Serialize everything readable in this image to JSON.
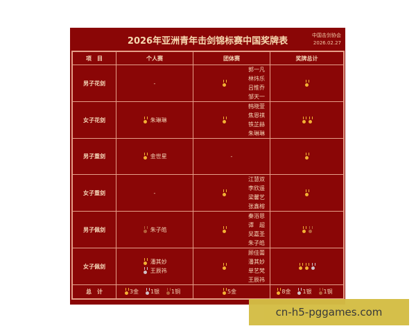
{
  "title": "2026年亚洲青年击剑锦标赛中国奖牌表",
  "org": "中国击剑协会",
  "date": "2026.02.27",
  "headers": [
    "项　目",
    "个人赛",
    "团体赛",
    "奖牌总计"
  ],
  "medal_colors": {
    "gold": "#f3b134",
    "silver": "#cfc2c8",
    "bronze": "#b5603a"
  },
  "rows": [
    {
      "event": "男子花剑",
      "individual": [],
      "individual_empty": "-",
      "team_medal": "gold",
      "team": [
        "郭一凡",
        "林炜乐",
        "吕惟乔",
        "邹天一"
      ],
      "total": [
        "gold"
      ]
    },
    {
      "event": "女子花剑",
      "individual": [
        {
          "medal": "gold",
          "name": "朱琳琳"
        }
      ],
      "team_medal": "gold",
      "team": [
        "韩晓萱",
        "焦恩祺",
        "铁芷赫",
        "朱琳琳"
      ],
      "total": [
        "gold",
        "gold"
      ]
    },
    {
      "event": "男子重剑",
      "individual": [
        {
          "medal": "gold",
          "name": "金世星"
        }
      ],
      "team_medal": null,
      "team_empty": "-",
      "team": [],
      "total": [
        "gold"
      ]
    },
    {
      "event": "女子重剑",
      "individual": [],
      "individual_empty": "-",
      "team_medal": "gold",
      "team": [
        "江慧双",
        "李欣遥",
        "梁馨艺",
        "张鑫榕"
      ],
      "total": [
        "gold"
      ]
    },
    {
      "event": "男子佩剑",
      "individual": [
        {
          "medal": "bronze",
          "name": "朱子皓"
        }
      ],
      "team_medal": "gold",
      "team": [
        "秦浴恩",
        "谭　超",
        "吴嘉圣",
        "朱子皓"
      ],
      "total": [
        "gold",
        "bronze"
      ]
    },
    {
      "event": "女子佩剑",
      "individual": [
        {
          "medal": "gold",
          "name": "潘其妙"
        },
        {
          "medal": "silver",
          "name": "王辰祎"
        }
      ],
      "team_medal": "gold",
      "team": [
        "顾佳薷",
        "潘其妙",
        "单艺梵",
        "王辰祎"
      ],
      "total": [
        "gold",
        "gold",
        "silver"
      ]
    }
  ],
  "totals": {
    "label": "总　计",
    "individual": [
      {
        "medal": "gold",
        "text": "3金"
      },
      {
        "medal": "silver",
        "text": "1银"
      },
      {
        "medal": "bronze",
        "text": "1铜"
      }
    ],
    "team": [
      {
        "medal": "gold",
        "text": "5金"
      }
    ],
    "overall": [
      {
        "medal": "gold",
        "text": "8金"
      },
      {
        "medal": "silver",
        "text": "1银"
      },
      {
        "medal": "bronze",
        "text": "1铜"
      }
    ]
  },
  "watermark": "cn-h5-pggames.com"
}
